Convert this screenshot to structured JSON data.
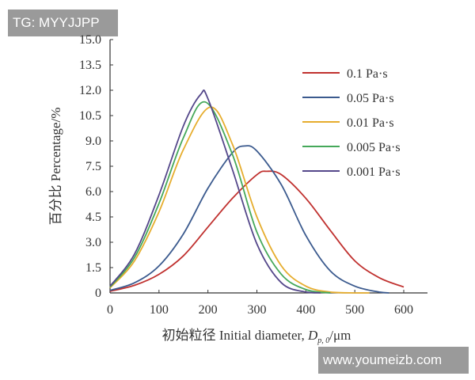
{
  "watermarks": {
    "top_left": "TG: MYYJJPP",
    "bottom_right": "www.youmeizb.com"
  },
  "chart_data": {
    "type": "line",
    "title": "",
    "xlabel": "初始粒径 Initial diameter, D_p,0/μm",
    "xlabel_parts": {
      "prefix": "初始粒径 Initial diameter, ",
      "var": "D",
      "sub": "p, 0",
      "unit": "/μm"
    },
    "ylabel": "百分比 Percentage/%",
    "xlim": [
      0,
      600
    ],
    "ylim": [
      0,
      15
    ],
    "xticks": [
      "0",
      "100",
      "200",
      "300",
      "400",
      "500",
      "600"
    ],
    "yticks": [
      "0",
      "1.5",
      "3.0",
      "4.5",
      "6.0",
      "7.5",
      "9.0",
      "10.5",
      "12.0",
      "13.5",
      "15.0"
    ],
    "grid": false,
    "legend_position": "top-right",
    "series": [
      {
        "name": "0.1 Pa·s",
        "color": "#c0312f",
        "x": [
          0,
          50,
          100,
          150,
          200,
          250,
          300,
          320,
          350,
          400,
          450,
          500,
          550,
          600
        ],
        "y": [
          0.1,
          0.45,
          1.1,
          2.2,
          3.9,
          5.6,
          7.0,
          7.2,
          7.0,
          5.6,
          3.7,
          1.9,
          0.9,
          0.35
        ]
      },
      {
        "name": "0.05 Pa·s",
        "color": "#3b5a8e",
        "x": [
          0,
          50,
          100,
          150,
          200,
          250,
          275,
          300,
          350,
          400,
          450,
          500,
          550,
          570
        ],
        "y": [
          0.15,
          0.6,
          1.6,
          3.5,
          6.2,
          8.3,
          8.7,
          8.4,
          6.4,
          3.4,
          1.3,
          0.4,
          0.05,
          0
        ]
      },
      {
        "name": "0.01 Pa·s",
        "color": "#e6ad2e",
        "x": [
          0,
          50,
          100,
          150,
          205,
          250,
          300,
          350,
          400,
          450,
          500,
          530
        ],
        "y": [
          0.3,
          1.9,
          4.8,
          8.5,
          11.0,
          8.8,
          4.5,
          1.6,
          0.4,
          0.05,
          0,
          0
        ]
      },
      {
        "name": "0.005 Pa·s",
        "color": "#45a85a",
        "x": [
          0,
          50,
          100,
          150,
          195,
          250,
          300,
          350,
          400,
          450
        ],
        "y": [
          0.35,
          2.1,
          5.3,
          9.2,
          11.3,
          8.2,
          3.6,
          1.1,
          0.2,
          0
        ]
      },
      {
        "name": "0.001 Pa·s",
        "color": "#54478a",
        "x": [
          0,
          50,
          100,
          150,
          185,
          200,
          250,
          300,
          350,
          400,
          430
        ],
        "y": [
          0.4,
          2.3,
          5.8,
          9.9,
          11.75,
          11.5,
          7.3,
          2.9,
          0.6,
          0.05,
          0
        ]
      }
    ]
  }
}
